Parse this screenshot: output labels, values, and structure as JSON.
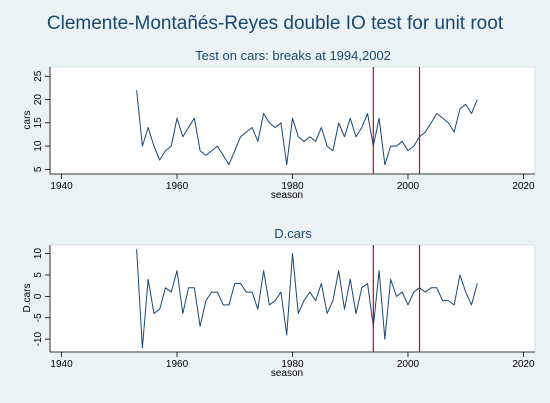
{
  "title": "Clemente-Montañés-Reyes double IO test for unit root",
  "colors": {
    "background": "#eaf2f3",
    "plot_bg": "#ffffff",
    "series": "#1a476f",
    "break_line": "#c10534"
  },
  "chart_data": [
    {
      "type": "line",
      "title": "Test on cars: breaks at 1994,2002",
      "xlabel": "season",
      "ylabel": "cars",
      "xlim": [
        1938,
        2022
      ],
      "ylim": [
        4,
        27
      ],
      "xticks": [
        1940,
        1960,
        1980,
        2000,
        2020
      ],
      "yticks": [
        5,
        10,
        15,
        20,
        25
      ],
      "grid": false,
      "breaks": [
        1994,
        2002
      ],
      "series": [
        {
          "x": [
            1953,
            1954,
            1955,
            1956,
            1957,
            1958,
            1959,
            1960,
            1961,
            1962,
            1963,
            1964,
            1965,
            1966,
            1967,
            1968,
            1969,
            1970,
            1971,
            1972,
            1973,
            1974,
            1975,
            1976,
            1977,
            1978,
            1979,
            1980,
            1981,
            1982,
            1983,
            1984,
            1985,
            1986,
            1987,
            1988,
            1989,
            1990,
            1991,
            1992,
            1993,
            1994,
            1995,
            1996,
            1997,
            1998,
            1999,
            2000,
            2001,
            2002,
            2003,
            2004,
            2005,
            2006,
            2007,
            2008,
            2009,
            2010,
            2011,
            2012
          ],
          "values": [
            22,
            10,
            14,
            10,
            7,
            9,
            10,
            16,
            12,
            14,
            16,
            9,
            8,
            9,
            10,
            8,
            6,
            9,
            12,
            13,
            14,
            11,
            17,
            15,
            14,
            15,
            6,
            16,
            12,
            11,
            12,
            11,
            14,
            10,
            9,
            15,
            12,
            16,
            12,
            14,
            17,
            10,
            16,
            6,
            10,
            10,
            11,
            9,
            10,
            12,
            13,
            15,
            17,
            16,
            15,
            13,
            18,
            19,
            17,
            20
          ]
        }
      ]
    },
    {
      "type": "line",
      "title": "D.cars",
      "xlabel": "season",
      "ylabel": "D.cars",
      "xlim": [
        1938,
        2022
      ],
      "ylim": [
        -13,
        12
      ],
      "xticks": [
        1940,
        1960,
        1980,
        2000,
        2020
      ],
      "yticks": [
        -10,
        -5,
        0,
        5,
        10
      ],
      "grid": false,
      "breaks": [
        1994,
        2002
      ],
      "series": [
        {
          "x": [
            1953,
            1954,
            1955,
            1956,
            1957,
            1958,
            1959,
            1960,
            1961,
            1962,
            1963,
            1964,
            1965,
            1966,
            1967,
            1968,
            1969,
            1970,
            1971,
            1972,
            1973,
            1974,
            1975,
            1976,
            1977,
            1978,
            1979,
            1980,
            1981,
            1982,
            1983,
            1984,
            1985,
            1986,
            1987,
            1988,
            1989,
            1990,
            1991,
            1992,
            1993,
            1994,
            1995,
            1996,
            1997,
            1998,
            1999,
            2000,
            2001,
            2002,
            2003,
            2004,
            2005,
            2006,
            2007,
            2008,
            2009,
            2010,
            2011,
            2012
          ],
          "values": [
            11,
            -12,
            4,
            -4,
            -3,
            2,
            1,
            6,
            -4,
            2,
            2,
            -7,
            -1,
            1,
            1,
            -2,
            -2,
            3,
            3,
            1,
            1,
            -3,
            6,
            -2,
            -1,
            1,
            -9,
            10,
            -4,
            -1,
            1,
            -1,
            3,
            -4,
            -1,
            6,
            -3,
            4,
            -4,
            2,
            3,
            -7,
            6,
            -10,
            4,
            0,
            1,
            -2,
            1,
            2,
            1,
            2,
            2,
            -1,
            -1,
            -2,
            5,
            1,
            -2,
            3
          ]
        }
      ]
    }
  ]
}
